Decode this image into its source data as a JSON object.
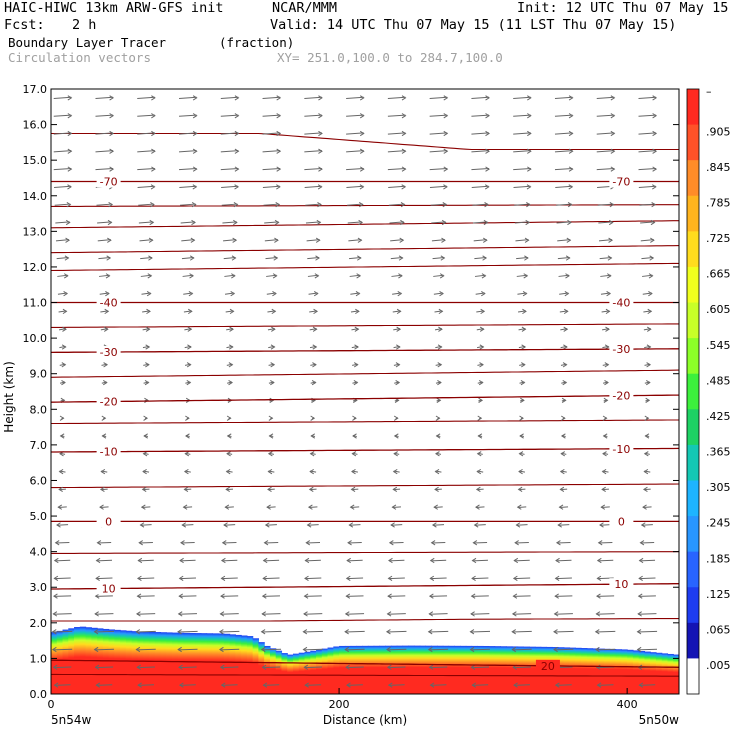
{
  "header": {
    "title_left": "HAIC-HIWC 13km ARW-GFS init",
    "org": "NCAR/MMM",
    "init": "Init: 12 UTC Thu 07 May 15",
    "fcst_label": "Fcst:",
    "fcst_value": "2 h",
    "valid": "Valid: 14 UTC Thu 07 May 15 (11 LST Thu 07 May 15)",
    "field_name": "Boundary Layer Tracer",
    "field_units": "(fraction)",
    "vector_label": "Circulation vectors",
    "xy_range": "XY= 251.0,100.0 to 284.7,100.0"
  },
  "chart_data": {
    "type": "heatmap",
    "xlabel": "Distance (km)",
    "ylabel": "Height (km)",
    "xlim": [
      0,
      436
    ],
    "ylim": [
      0,
      17
    ],
    "x_ticks": [
      0,
      200,
      400
    ],
    "y_ticks": [
      "0.0",
      "1.0",
      "2.0",
      "3.0",
      "4.0",
      "5.0",
      "6.0",
      "7.0",
      "8.0",
      "9.0",
      "10.0",
      "11.0",
      "12.0",
      "13.0",
      "14.0",
      "15.0",
      "16.0",
      "17.0"
    ],
    "x_endpoint_labels": {
      "left": "5n54w",
      "right": "5n50w"
    },
    "colorbar_labels": [
      "–",
      ".905",
      ".845",
      ".785",
      ".725",
      ".665",
      ".605",
      ".545",
      ".485",
      ".425",
      ".365",
      ".305",
      ".245",
      ".185",
      ".125",
      ".065",
      ".005"
    ],
    "colorbar_colors": [
      "#ff2a20",
      "#ff5228",
      "#ff8c28",
      "#ffb41e",
      "#ffdc1e",
      "#f0ff1e",
      "#c8ff28",
      "#8cff28",
      "#3cf03c",
      "#1ed264",
      "#14c8b4",
      "#1eb4ff",
      "#2896ff",
      "#2864ff",
      "#1e3cf0",
      "#1414b4",
      "#ffffff"
    ],
    "boundary_layer_top_km": [
      [
        0,
        1.72
      ],
      [
        20,
        1.9
      ],
      [
        40,
        1.82
      ],
      [
        60,
        1.76
      ],
      [
        90,
        1.72
      ],
      [
        120,
        1.7
      ],
      [
        140,
        1.62
      ],
      [
        150,
        1.35
      ],
      [
        165,
        1.1
      ],
      [
        180,
        1.2
      ],
      [
        200,
        1.35
      ],
      [
        250,
        1.36
      ],
      [
        300,
        1.35
      ],
      [
        350,
        1.32
      ],
      [
        400,
        1.25
      ],
      [
        436,
        1.1
      ]
    ],
    "temperature_contours": [
      {
        "label": "-70",
        "values_km": [
          14.4,
          14.4
        ]
      },
      {
        "label": "-40",
        "values_km": [
          11.0,
          11.0
        ]
      },
      {
        "label": "-30",
        "values_km": [
          9.6,
          9.7
        ]
      },
      {
        "label": "-20",
        "values_km": [
          8.2,
          8.4
        ]
      },
      {
        "label": "-10",
        "values_km": [
          6.8,
          6.9
        ]
      },
      {
        "label": "0",
        "values_km": [
          4.85,
          4.85
        ]
      },
      {
        "label": "10",
        "values_km": [
          2.95,
          3.1
        ]
      },
      {
        "label": "20",
        "values_km": [
          0.95,
          0.75
        ]
      }
    ],
    "theta_lines_km": [
      [
        15.75,
        15.75,
        15.3,
        15.3
      ],
      [
        13.7,
        13.75
      ],
      [
        13.1,
        13.3
      ],
      [
        12.4,
        12.6
      ],
      [
        11.9,
        12.1
      ],
      [
        10.3,
        10.4
      ],
      [
        8.9,
        9.1
      ],
      [
        7.6,
        7.7
      ],
      [
        5.8,
        5.9
      ],
      [
        3.95,
        4.0
      ],
      [
        2.05,
        2.05,
        2.1,
        2.12
      ],
      [
        0.55,
        0.5
      ]
    ],
    "vector_field": {
      "x_spacing_km": 29,
      "y_spacing_km": 0.5,
      "u_profile": [
        [
          0,
          -5
        ],
        [
          1.5,
          -7
        ],
        [
          2.5,
          -6
        ],
        [
          4.0,
          -5
        ],
        [
          5.5,
          -2
        ],
        [
          7.0,
          -1
        ],
        [
          8.5,
          1
        ],
        [
          10.5,
          2
        ],
        [
          12.5,
          4
        ],
        [
          14.5,
          6
        ],
        [
          17,
          6
        ]
      ]
    }
  }
}
